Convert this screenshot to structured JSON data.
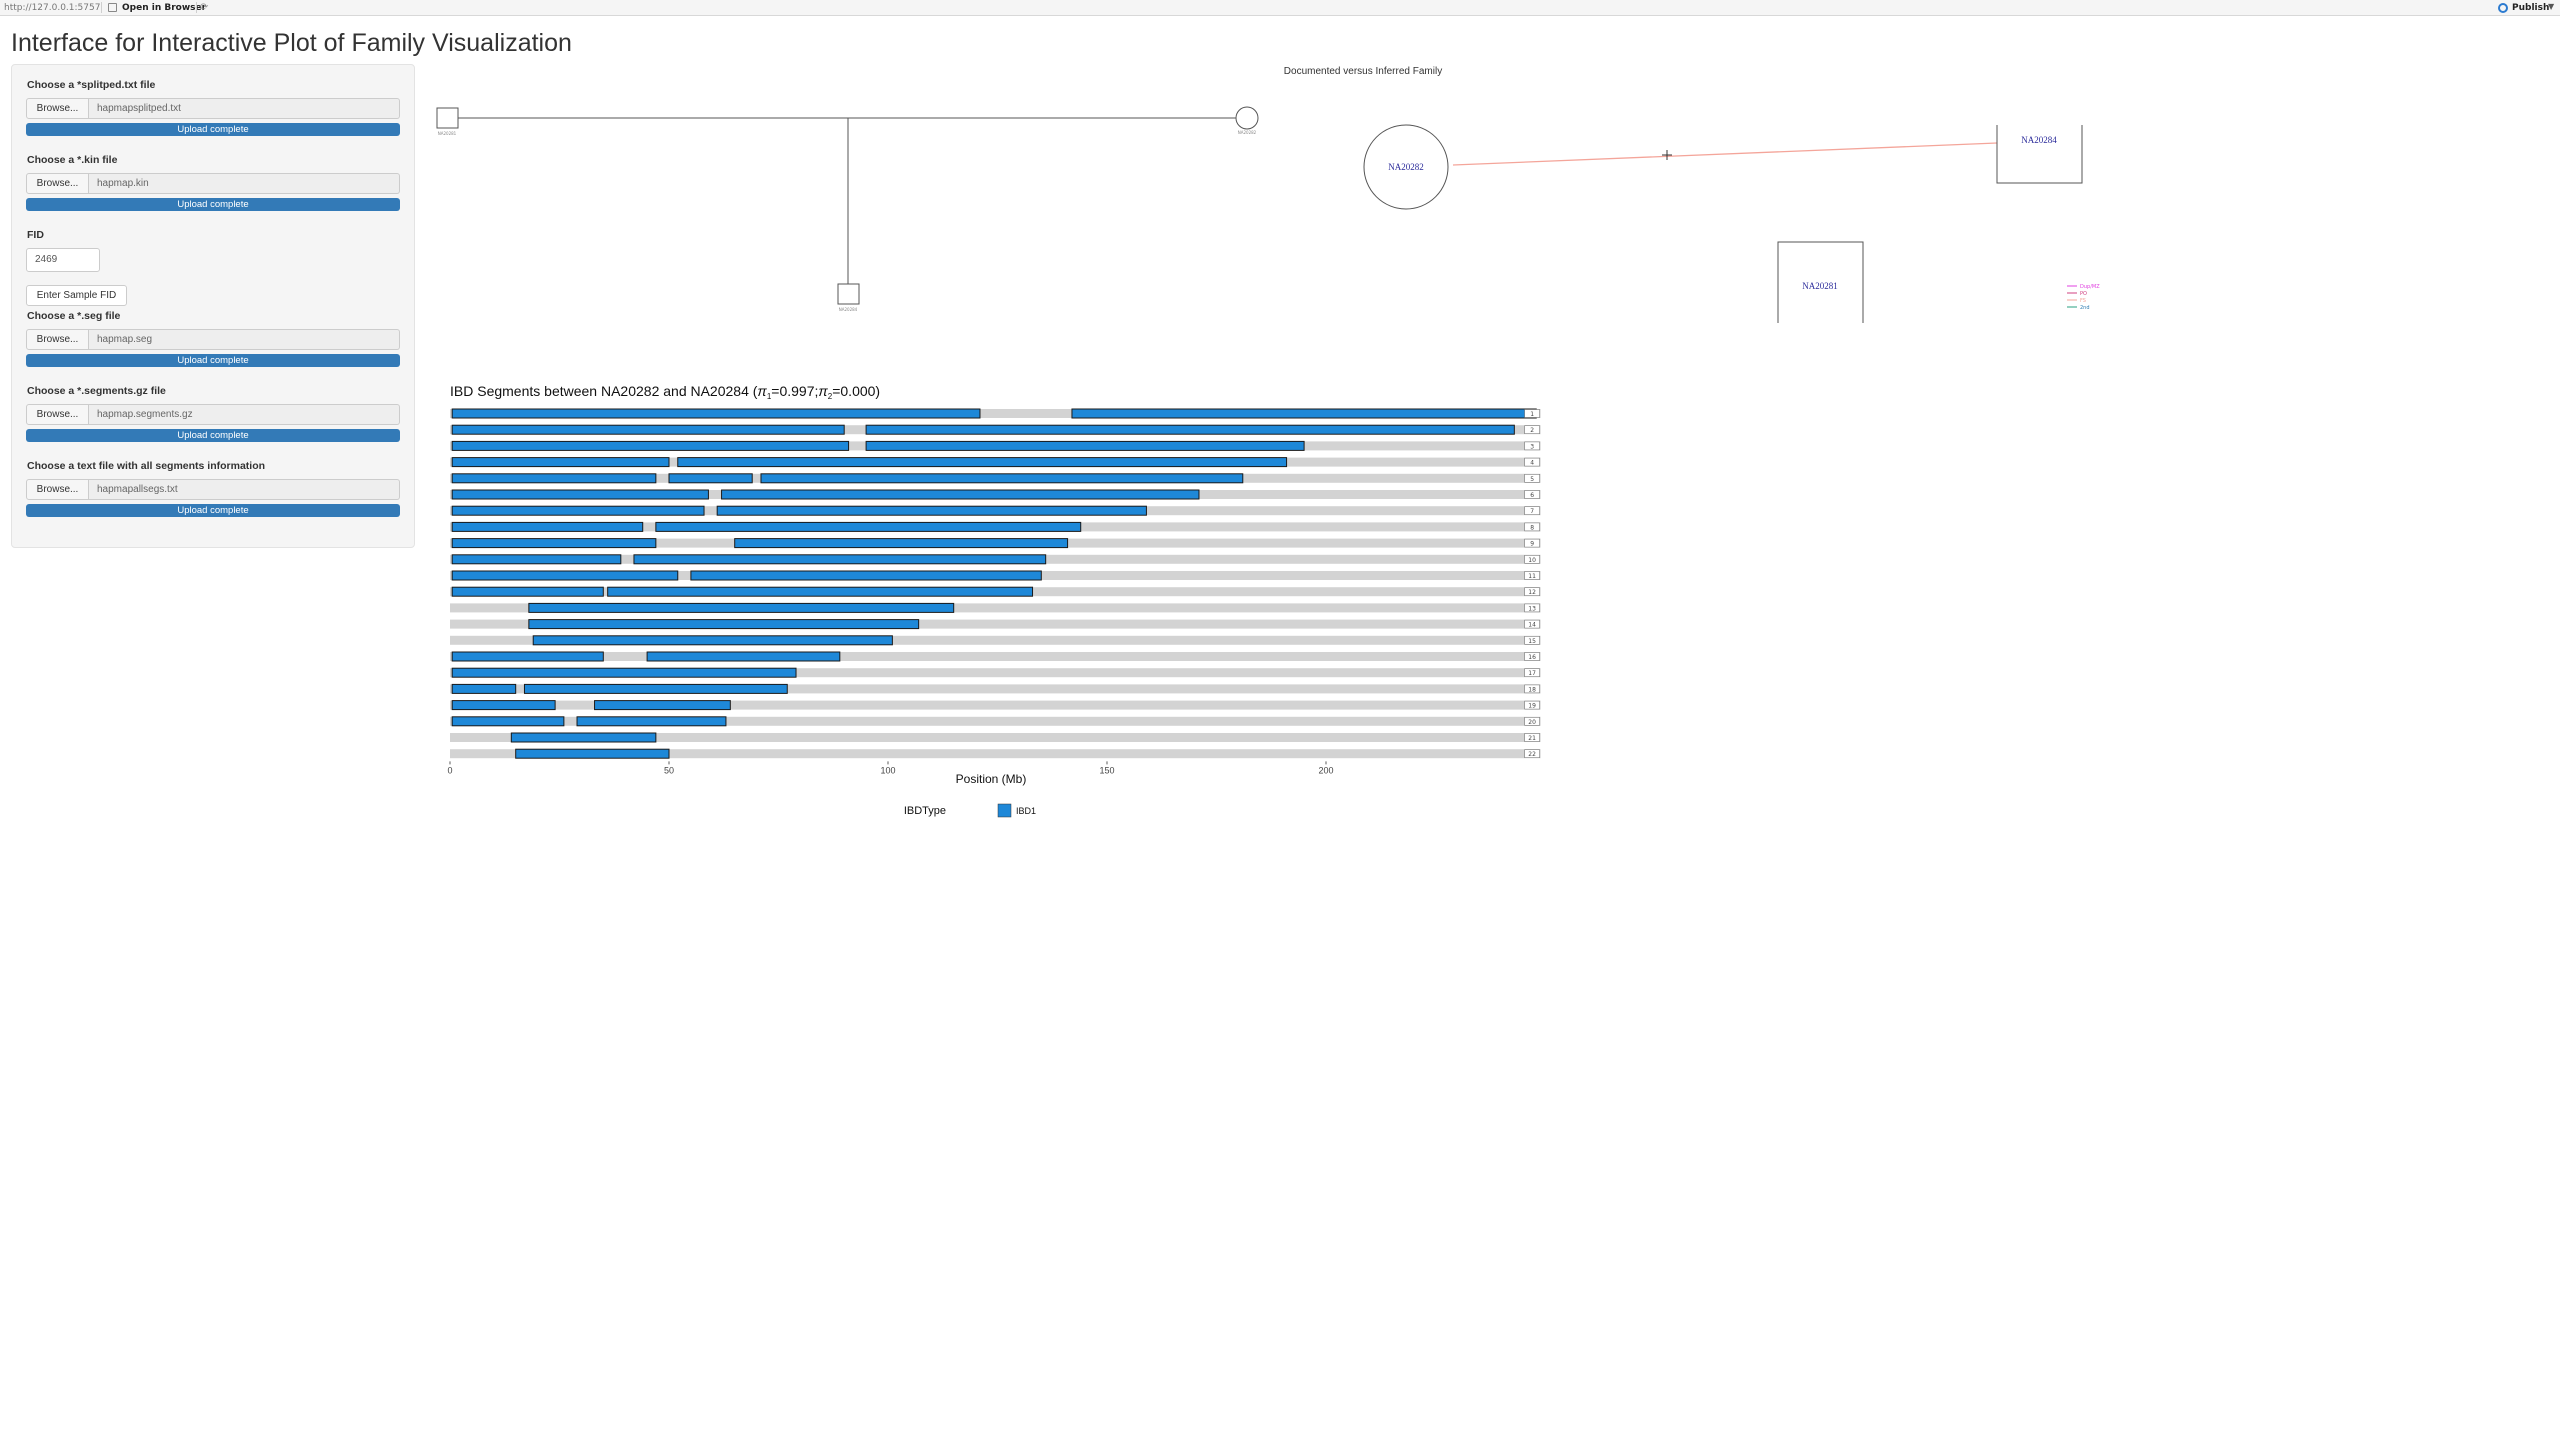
{
  "browser_bar": {
    "url": "http://127.0.0.1:5757",
    "open_in_browser": "Open in Browser",
    "publish": "Publish"
  },
  "page_title": "Interface for Interactive Plot of Family Visualization",
  "sidebar": {
    "splitped": {
      "label": "Choose a *splitped.txt file",
      "browse": "Browse...",
      "file": "hapmapsplitped.txt",
      "status": "Upload complete"
    },
    "kin": {
      "label": "Choose a *.kin file",
      "browse": "Browse...",
      "file": "hapmap.kin",
      "status": "Upload complete"
    },
    "fid": {
      "label": "FID",
      "value": "2469",
      "button": "Enter Sample FID"
    },
    "seg": {
      "label": "Choose a *.seg file",
      "browse": "Browse...",
      "file": "hapmap.seg",
      "status": "Upload complete"
    },
    "segments": {
      "label": "Choose a *.segments.gz file",
      "browse": "Browse...",
      "file": "hapmap.segments.gz",
      "status": "Upload complete"
    },
    "allsegs": {
      "label": "Choose a text file with all segments information",
      "browse": "Browse...",
      "file": "hapmapallsegs.txt",
      "status": "Upload complete"
    }
  },
  "pedigree": {
    "title": "Documented versus Inferred Family",
    "inferred_nodes": [
      "NA20282",
      "NA20284",
      "NA20281"
    ],
    "legend": [
      "Dup/MZ",
      "PO",
      "FS",
      "2nd"
    ],
    "colors": {
      "relationship_line": "#f4a59a",
      "node_text": "#2a2a9a"
    }
  },
  "ibd": {
    "title": "IBD Segments between NA20282 and NA20284 (",
    "pi1_symbol": "π",
    "pi1_sub": "1",
    "pi1_value": "=0.997;",
    "pi2_symbol": "π",
    "pi2_sub": "2",
    "pi2_value": "=0.000)",
    "xlabel": "Position (Mb)",
    "legend_title": "IBDType",
    "legend_item": "IBD1",
    "colors": {
      "ibd1": "#1e88d8",
      "background": "#d3d3d3"
    }
  },
  "chart_data": {
    "type": "bar",
    "title": "IBD Segments between NA20282 and NA20284 (π1=0.997;π2=0.000)",
    "xlabel": "Position (Mb)",
    "xlim": [
      0,
      250
    ],
    "xticks": [
      0,
      50,
      100,
      150,
      200
    ],
    "legend": [
      "IBD1"
    ],
    "chromosomes": [
      {
        "chr": "1",
        "length": 249,
        "segments": [
          [
            0.5,
            121
          ],
          [
            142,
            248
          ]
        ]
      },
      {
        "chr": "2",
        "length": 243,
        "segments": [
          [
            0.5,
            90
          ],
          [
            95,
            243
          ]
        ]
      },
      {
        "chr": "3",
        "length": 198,
        "segments": [
          [
            0.5,
            91
          ],
          [
            95,
            195
          ]
        ]
      },
      {
        "chr": "4",
        "length": 191,
        "segments": [
          [
            0.5,
            50
          ],
          [
            52,
            191
          ]
        ]
      },
      {
        "chr": "5",
        "length": 181,
        "segments": [
          [
            0.5,
            47
          ],
          [
            50,
            69
          ],
          [
            71,
            181
          ]
        ]
      },
      {
        "chr": "6",
        "length": 171,
        "segments": [
          [
            0.5,
            59
          ],
          [
            62,
            171
          ]
        ]
      },
      {
        "chr": "7",
        "length": 159,
        "segments": [
          [
            0.5,
            58
          ],
          [
            61,
            159
          ]
        ]
      },
      {
        "chr": "8",
        "length": 146,
        "segments": [
          [
            0.5,
            44
          ],
          [
            47,
            144
          ]
        ]
      },
      {
        "chr": "9",
        "length": 141,
        "segments": [
          [
            0.5,
            47
          ],
          [
            65,
            141
          ]
        ]
      },
      {
        "chr": "10",
        "length": 136,
        "segments": [
          [
            0.5,
            39
          ],
          [
            42,
            136
          ]
        ]
      },
      {
        "chr": "11",
        "length": 135,
        "segments": [
          [
            0.5,
            52
          ],
          [
            55,
            135
          ]
        ]
      },
      {
        "chr": "12",
        "length": 134,
        "segments": [
          [
            0.5,
            35
          ],
          [
            36,
            133
          ]
        ]
      },
      {
        "chr": "13",
        "length": 115,
        "segments": [
          [
            18,
            115
          ]
        ]
      },
      {
        "chr": "14",
        "length": 107,
        "segments": [
          [
            18,
            107
          ]
        ]
      },
      {
        "chr": "15",
        "length": 102,
        "segments": [
          [
            19,
            101
          ]
        ]
      },
      {
        "chr": "16",
        "length": 90,
        "segments": [
          [
            0.5,
            35
          ],
          [
            45,
            89
          ]
        ]
      },
      {
        "chr": "17",
        "length": 81,
        "segments": [
          [
            0.5,
            79
          ]
        ]
      },
      {
        "chr": "18",
        "length": 78,
        "segments": [
          [
            0.5,
            15
          ],
          [
            17,
            77
          ]
        ]
      },
      {
        "chr": "19",
        "length": 59,
        "segments": [
          [
            0.5,
            24
          ],
          [
            33,
            64
          ]
        ]
      },
      {
        "chr": "20",
        "length": 63,
        "segments": [
          [
            0.5,
            26
          ],
          [
            29,
            63
          ]
        ]
      },
      {
        "chr": "21",
        "length": 48,
        "segments": [
          [
            14,
            47
          ]
        ]
      },
      {
        "chr": "22",
        "length": 51,
        "segments": [
          [
            15,
            50
          ]
        ]
      }
    ]
  }
}
